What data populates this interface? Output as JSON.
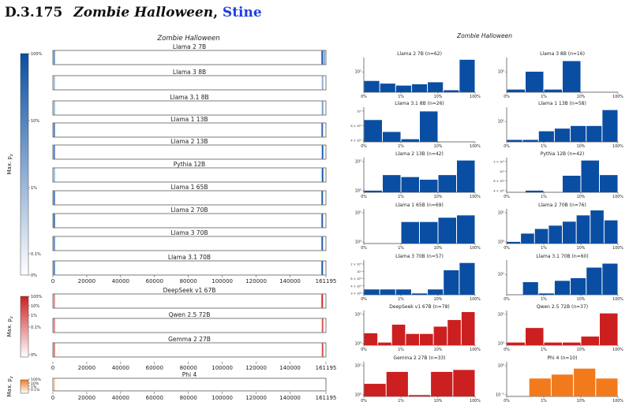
{
  "heading": {
    "number": "D.3.175",
    "title": "Zombie Halloween",
    "sep": ", ",
    "author": "Stine"
  },
  "colors": {
    "blue": "#0a4ea3",
    "red": "#cc1f1f",
    "orange": "#f27a1d",
    "frame": "#444444"
  },
  "chart_data": [
    {
      "type": "heatmap",
      "title": "Zombie Halloween",
      "colorbar_label": "Max. p_z",
      "x_ticks": [
        "0",
        "20000",
        "40000",
        "60000",
        "80000",
        "100000",
        "120000",
        "140000",
        "161195"
      ],
      "x_max": 161195,
      "groups": [
        {
          "name": "blue",
          "colorbar_ticks": [
            "100%",
            "10%",
            "1%",
            "0.1%",
            "0%"
          ],
          "rows": [
            {
              "label": "Llama 2 7B",
              "marks": [
                {
                  "x": 800,
                  "level": 0.6
                },
                {
                  "x": 159000,
                  "level": 0.95
                },
                {
                  "x": 160200,
                  "level": 0.5
                }
              ]
            },
            {
              "label": "Llama 3 8B",
              "marks": [
                {
                  "x": 800,
                  "level": 0.35
                },
                {
                  "x": 159200,
                  "level": 0.45
                }
              ]
            },
            {
              "label": "Llama 3.1 8B",
              "marks": [
                {
                  "x": 800,
                  "level": 0.4
                },
                {
                  "x": 159200,
                  "level": 0.55
                }
              ]
            },
            {
              "label": "Llama 1 13B",
              "marks": [
                {
                  "x": 800,
                  "level": 0.7
                },
                {
                  "x": 159000,
                  "level": 0.85
                }
              ]
            },
            {
              "label": "Llama 2 13B",
              "marks": [
                {
                  "x": 800,
                  "level": 0.7
                },
                {
                  "x": 159200,
                  "level": 0.9
                }
              ]
            },
            {
              "label": "Pythia 12B",
              "marks": [
                {
                  "x": 800,
                  "level": 0.4
                },
                {
                  "x": 159200,
                  "level": 0.95
                }
              ]
            },
            {
              "label": "Llama 1 65B",
              "marks": [
                {
                  "x": 800,
                  "level": 0.75
                },
                {
                  "x": 159000,
                  "level": 0.9
                }
              ]
            },
            {
              "label": "Llama 2 70B",
              "marks": [
                {
                  "x": 800,
                  "level": 0.8
                },
                {
                  "x": 159000,
                  "level": 0.9
                }
              ]
            },
            {
              "label": "Llama 3 70B",
              "marks": [
                {
                  "x": 800,
                  "level": 0.65
                },
                {
                  "x": 159000,
                  "level": 0.9
                }
              ]
            },
            {
              "label": "Llama 3.1 70B",
              "marks": [
                {
                  "x": 800,
                  "level": 0.7
                },
                {
                  "x": 159000,
                  "level": 0.95
                }
              ]
            }
          ]
        },
        {
          "name": "red",
          "colorbar_ticks": [
            "100%",
            "10%",
            "1%",
            "0.1%",
            "0%"
          ],
          "rows": [
            {
              "label": "DeepSeek v1 67B",
              "marks": [
                {
                  "x": 800,
                  "level": 0.5
                },
                {
                  "x": 159000,
                  "level": 0.95
                }
              ]
            },
            {
              "label": "Qwen 2.5 72B",
              "marks": [
                {
                  "x": 800,
                  "level": 0.55
                },
                {
                  "x": 159200,
                  "level": 0.75
                }
              ]
            },
            {
              "label": "Gemma 2 27B",
              "marks": [
                {
                  "x": 800,
                  "level": 0.6
                },
                {
                  "x": 159200,
                  "level": 0.8
                }
              ]
            }
          ]
        },
        {
          "name": "orange",
          "colorbar_ticks": [
            "100%",
            "10%",
            "1%",
            "0.1%"
          ],
          "rows": [
            {
              "label": "Phi 4",
              "marks": [
                {
                  "x": 800,
                  "level": 0.4
                }
              ]
            }
          ]
        }
      ]
    },
    {
      "type": "bar",
      "title": "Zombie Halloween",
      "x_ticks": [
        "0%",
        "1%",
        "10%",
        "100%"
      ],
      "y_scale": "log",
      "panels": [
        {
          "title": "Llama 2 7B (n=62)",
          "color": "blue",
          "yticks": [
            "10¹"
          ],
          "values": [
            0.34,
            0.26,
            0.2,
            0.24,
            0.3,
            0.06,
            0.98
          ]
        },
        {
          "title": "Llama 3 8B (n=16)",
          "color": "blue",
          "yticks": [
            "10⁰"
          ],
          "values": [
            0.08,
            0.62,
            0.08,
            0.94,
            0,
            0
          ]
        },
        {
          "title": "Llama 3.1 8B (n=26)",
          "color": "blue",
          "yticks": [
            "10¹",
            "6 × 10⁰",
            "4 × 10⁰"
          ],
          "values": [
            0.66,
            0.3,
            0.08,
            0.92,
            0,
            0
          ]
        },
        {
          "title": "Llama 1 13B (n=58)",
          "color": "blue",
          "yticks": [
            "10¹"
          ],
          "values": [
            0.06,
            0.06,
            0.32,
            0.4,
            0.48,
            0.48,
            0.96
          ]
        },
        {
          "title": "Llama 2 13B (n=42)",
          "color": "blue",
          "yticks": [
            "10¹",
            "10⁰"
          ],
          "values": [
            0.05,
            0.52,
            0.46,
            0.38,
            0.52,
            0.96
          ]
        },
        {
          "title": "Pythia 12B (n=42)",
          "color": "blue",
          "yticks": [
            "2 × 10¹",
            "10¹",
            "6 × 10⁰",
            "4 × 10⁰"
          ],
          "values": [
            0,
            0.05,
            0,
            0.5,
            0.96,
            0.52
          ]
        },
        {
          "title": "Llama 1 65B (n=69)",
          "color": "blue",
          "yticks": [
            "10¹",
            "10⁰"
          ],
          "values": [
            0,
            0,
            0.65,
            0.65,
            0.78,
            0.85
          ]
        },
        {
          "title": "Llama 2 70B (n=76)",
          "color": "blue",
          "yticks": [
            "10¹",
            "10⁰"
          ],
          "values": [
            0.05,
            0.3,
            0.44,
            0.54,
            0.66,
            0.85,
            1.0,
            0.7
          ]
        },
        {
          "title": "Llama 3 70B (n=57)",
          "color": "blue",
          "yticks": [
            "2 × 10¹",
            "10¹",
            "6 × 10⁰",
            "4 × 10⁰",
            "3 × 10⁰"
          ],
          "values": [
            0.16,
            0.16,
            0.16,
            0.04,
            0.16,
            0.74,
            0.96
          ]
        },
        {
          "title": "Llama 3.1 70B (n=60)",
          "color": "blue",
          "yticks": [
            "10¹"
          ],
          "values": [
            0,
            0.38,
            0.04,
            0.42,
            0.5,
            0.82,
            0.94
          ]
        },
        {
          "title": "DeepSeek v1 67B (n=78)",
          "color": "red",
          "yticks": [
            "10¹",
            "10⁰"
          ],
          "values": [
            0.36,
            0.08,
            0.62,
            0.34,
            0.34,
            0.56,
            0.76,
            1.0
          ]
        },
        {
          "title": "Qwen 2.5 72B (n=37)",
          "color": "red",
          "yticks": [
            "10¹",
            "10⁰"
          ],
          "values": [
            0.08,
            0.52,
            0.08,
            0.08,
            0.26,
            0.96
          ]
        },
        {
          "title": "Gemma 2 27B (n=33)",
          "color": "red",
          "yticks": [
            "10¹",
            "10⁰"
          ],
          "values": [
            0.38,
            0.74,
            0.04,
            0.74,
            0.8
          ]
        },
        {
          "title": "Phi 4 (n=10)",
          "color": "orange",
          "yticks": [
            "10⁰",
            "10⁻¹"
          ],
          "values": [
            0,
            0.54,
            0.66,
            0.84,
            0.54
          ]
        }
      ]
    }
  ]
}
